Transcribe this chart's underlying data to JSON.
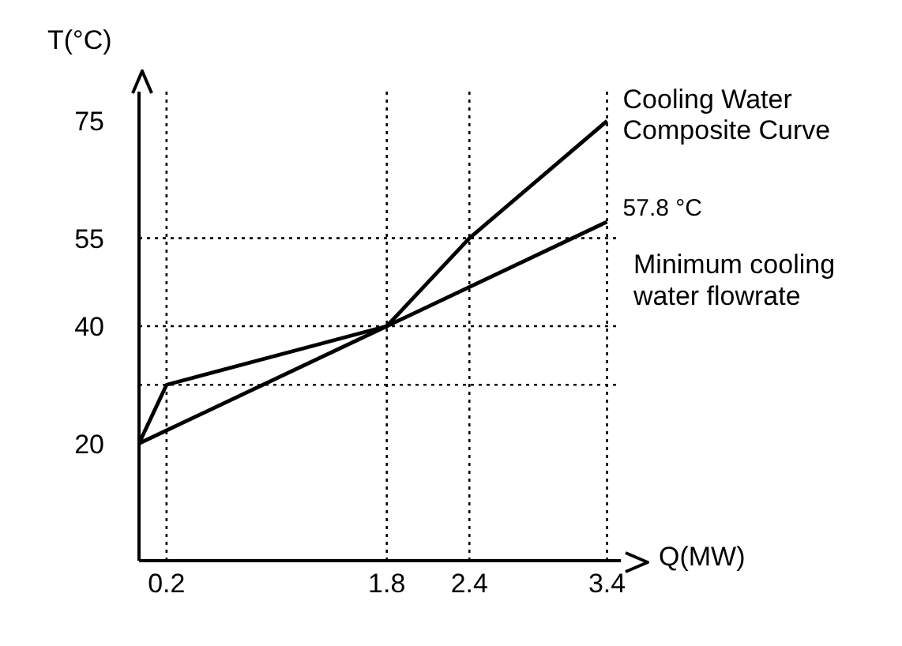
{
  "chart_data": {
    "type": "line",
    "xlabel": "Q(MW)",
    "ylabel": "T(°C)",
    "xlim": [
      0,
      3.5
    ],
    "ylim": [
      0,
      80
    ],
    "xticks": [
      0.2,
      1.8,
      2.4,
      3.4
    ],
    "yticks": [
      20,
      40,
      55,
      75
    ],
    "grid": false,
    "marker": "none",
    "line_style": "solid",
    "series": [
      {
        "color": "#000000",
        "x": [
          0,
          0.2,
          1.8,
          2.4,
          3.4
        ],
        "values": [
          20,
          30,
          40,
          55,
          75
        ]
      },
      {
        "color": "#000000",
        "x": [
          0,
          1.8,
          3.4
        ],
        "values": [
          20,
          40,
          57.8
        ]
      }
    ],
    "ref_lines": [
      {
        "axis": "y",
        "value": 55,
        "line_style": "dotted",
        "color": "#000000"
      },
      {
        "axis": "y",
        "value": 40,
        "line_style": "dotted",
        "color": "#000000"
      },
      {
        "axis": "y",
        "value": 30,
        "line_style": "dotted",
        "color": "#000000"
      },
      {
        "axis": "x",
        "value": 0.2,
        "line_style": "dotted",
        "color": "#000000"
      },
      {
        "axis": "x",
        "value": 1.8,
        "line_style": "dotted",
        "color": "#000000"
      },
      {
        "axis": "x",
        "value": 2.4,
        "line_style": "dotted",
        "color": "#000000"
      },
      {
        "axis": "x",
        "value": 3.4,
        "line_style": "dotted",
        "color": "#000000"
      }
    ],
    "annotations": [
      {
        "text": "Cooling Water Composite Curve",
        "x": 3.4,
        "y": 75
      },
      {
        "text": "57.8 °C",
        "x": 3.4,
        "y": 57.8
      },
      "Minimum cooling water flowrate"
    ]
  }
}
